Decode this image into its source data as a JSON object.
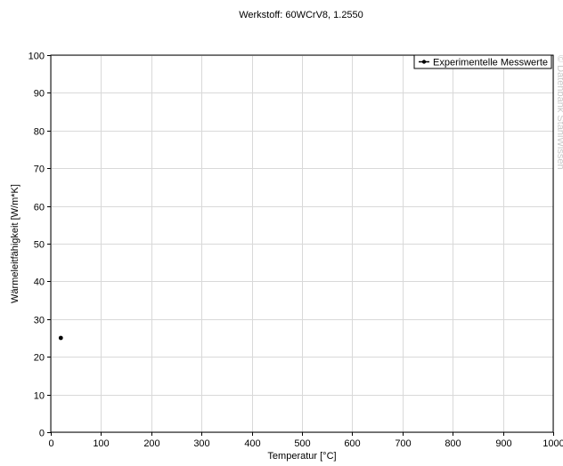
{
  "chart_data": {
    "type": "scatter",
    "title": "Werkstoff: 60WCrV8, 1.2550",
    "xlabel": "Temperatur [°C]",
    "ylabel": "Wärmeleitfähigkeit [W/m*K]",
    "xlim": [
      0,
      1000
    ],
    "ylim": [
      0,
      100
    ],
    "xticks": [
      0,
      100,
      200,
      300,
      400,
      500,
      600,
      700,
      800,
      900,
      1000
    ],
    "yticks": [
      0,
      10,
      20,
      30,
      40,
      50,
      60,
      70,
      80,
      90,
      100
    ],
    "grid": true,
    "legend_position": "top-right",
    "series": [
      {
        "name": "Experimentelle Messwerte",
        "color": "#000000",
        "marker": "circle",
        "points": [
          {
            "x": 20,
            "y": 25
          }
        ]
      }
    ],
    "watermark": "© Datenbank StahlWissen"
  }
}
